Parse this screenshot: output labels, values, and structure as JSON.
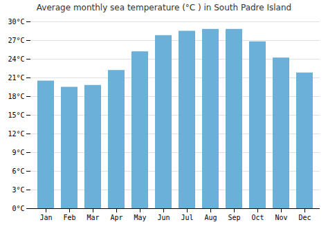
{
  "chart_data": {
    "type": "bar",
    "title": "Average monthly sea temperature (°C ) in South Padre Island",
    "categories": [
      "Jan",
      "Feb",
      "Mar",
      "Apr",
      "May",
      "Jun",
      "Jul",
      "Aug",
      "Sep",
      "Oct",
      "Nov",
      "Dec"
    ],
    "values": [
      20.5,
      19.5,
      19.8,
      22.2,
      25.2,
      27.8,
      28.5,
      28.8,
      28.8,
      26.8,
      24.2,
      21.8
    ],
    "color": "#6ab0d8",
    "ylim": [
      0,
      30
    ],
    "yticks": [
      {
        "value": 0,
        "label": "0°C"
      },
      {
        "value": 3,
        "label": "3°C"
      },
      {
        "value": 6,
        "label": "6°C"
      },
      {
        "value": 9,
        "label": "9°C"
      },
      {
        "value": 12,
        "label": "12°C"
      },
      {
        "value": 15,
        "label": "15°C"
      },
      {
        "value": 18,
        "label": "18°C"
      },
      {
        "value": 21,
        "label": "21°C"
      },
      {
        "value": 24,
        "label": "24°C"
      },
      {
        "value": 27,
        "label": "27°C"
      },
      {
        "value": 30,
        "label": "30°C"
      }
    ],
    "grid": true
  }
}
